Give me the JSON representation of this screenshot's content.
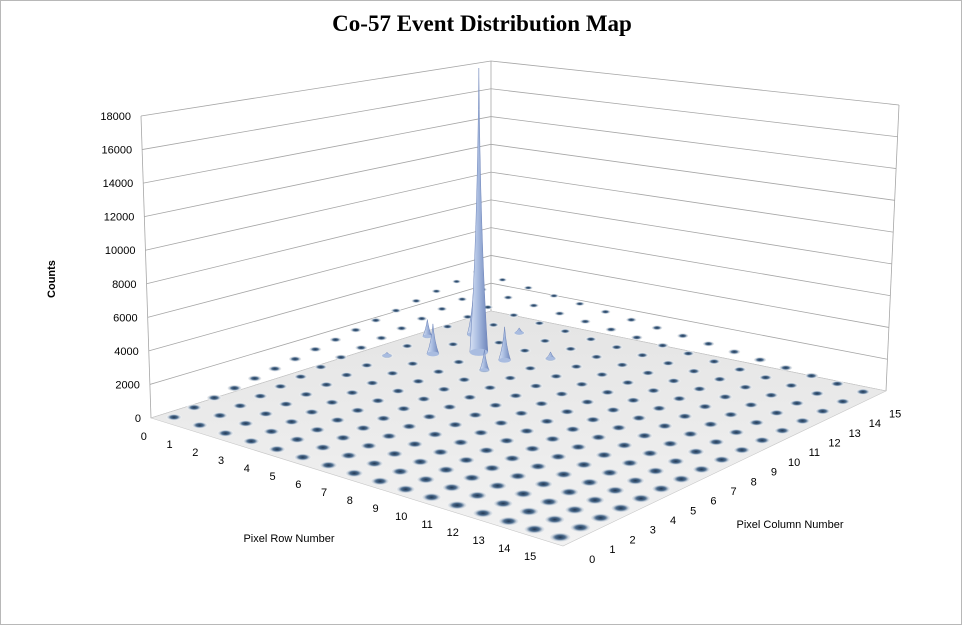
{
  "chart_data": {
    "type": "surface-3d",
    "title": "Co-57 Event Distribution Map",
    "zlabel": "Counts",
    "xlabel": "Pixel Row Number",
    "ylabel": "Pixel Column Number",
    "z_ticks": [
      "0",
      "2000",
      "4000",
      "6000",
      "8000",
      "10000",
      "12000",
      "14000",
      "16000",
      "18000"
    ],
    "zlim": [
      0,
      18000
    ],
    "row_ticks": [
      "0",
      "1",
      "2",
      "3",
      "4",
      "5",
      "6",
      "7",
      "8",
      "9",
      "10",
      "11",
      "12",
      "13",
      "14",
      "15"
    ],
    "col_ticks": [
      "0",
      "1",
      "2",
      "3",
      "4",
      "5",
      "6",
      "7",
      "8",
      "9",
      "10",
      "11",
      "12",
      "13",
      "14",
      "15"
    ],
    "grid": true,
    "baseline_counts": 0,
    "peaks": [
      {
        "row": 4,
        "col": 10,
        "counts": 17000
      },
      {
        "row": 5,
        "col": 10,
        "counts": 2000
      },
      {
        "row": 3,
        "col": 11,
        "counts": 2500
      },
      {
        "row": 5,
        "col": 9,
        "counts": 1200
      },
      {
        "row": 3,
        "col": 9,
        "counts": 1800
      },
      {
        "row": 2,
        "col": 10,
        "counts": 1000
      },
      {
        "row": 4,
        "col": 12,
        "counts": 300
      },
      {
        "row": 6,
        "col": 11,
        "counts": 400
      },
      {
        "row": 2,
        "col": 8,
        "counts": 200
      }
    ],
    "colors": {
      "surface": "#a9bce0",
      "surface_dark": "#7f95c6",
      "dot": "#3b5876",
      "grid": "#a6a6a6"
    }
  }
}
